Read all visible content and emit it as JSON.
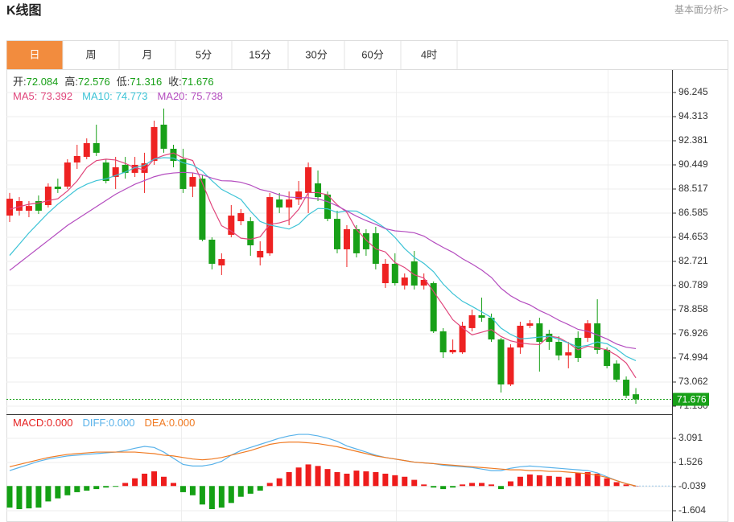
{
  "header": {
    "title": "K线图",
    "link": "基本面分析>"
  },
  "tabs": [
    "日",
    "周",
    "月",
    "5分",
    "15分",
    "30分",
    "60分",
    "4时"
  ],
  "active_tab": 0,
  "chart_data": [
    {
      "type": "candlestick",
      "ylim": [
        70.485,
        98.113
      ],
      "yticks": [
        96.245,
        94.313,
        92.381,
        90.449,
        88.517,
        86.585,
        84.653,
        82.721,
        80.789,
        78.858,
        76.926,
        74.994,
        73.062,
        {
          "value": 71.13,
          "label": "71.130"
        }
      ],
      "grid": true,
      "up_color": "#ee2222",
      "down_color": "#18a018",
      "readout_labels": {
        "open": "开:",
        "high": "高:",
        "low": "低:",
        "close": "收:"
      },
      "open": [
        86.39,
        86.78,
        86.78,
        87.55,
        87.23,
        88.71,
        88.71,
        90.64,
        91.09,
        92.19,
        90.64,
        89.48,
        90.45,
        89.81,
        89.81,
        90.77,
        93.67,
        91.74,
        90.9,
        88.71,
        89.35,
        84.46,
        82.4,
        84.85,
        85.94,
        85.94,
        83.04,
        83.37,
        87.68,
        87.04,
        87.68,
        88.2,
        88.97,
        88.07,
        86.13,
        83.69,
        85.3,
        84.98,
        84.98,
        80.98,
        82.53,
        80.79,
        82.72,
        80.79,
        80.98,
        77.12,
        75.44,
        75.44,
        77.38,
        78.41,
        78.21,
        76.47,
        72.87,
        75.83,
        77.57,
        77.76,
        76.93,
        76.28,
        75.19,
        76.6,
        76.6,
        77.76,
        75.64,
        74.54,
        73.25,
        72.084
      ],
      "high": [
        88.2,
        87.87,
        87.55,
        88.0,
        88.97,
        89.35,
        90.9,
        92.06,
        92.57,
        93.67,
        90.9,
        91.09,
        91.09,
        91.09,
        91.42,
        93.99,
        94.96,
        92.06,
        91.74,
        89.81,
        89.61,
        84.65,
        83.37,
        87.23,
        86.91,
        86.26,
        84.33,
        88.2,
        88.2,
        88.32,
        89.16,
        90.64,
        90.0,
        88.32,
        86.78,
        85.62,
        85.62,
        85.3,
        85.49,
        82.91,
        83.37,
        81.76,
        83.56,
        81.76,
        81.11,
        77.38,
        76.47,
        77.89,
        78.86,
        79.82,
        78.54,
        76.6,
        76.09,
        77.89,
        78.02,
        78.21,
        77.25,
        76.73,
        76.28,
        77.12,
        78.02,
        79.69,
        75.83,
        74.8,
        73.51,
        72.576
      ],
      "low": [
        85.88,
        86.39,
        86.26,
        86.52,
        87.04,
        88.2,
        88.52,
        90.13,
        90.9,
        91.16,
        88.97,
        88.52,
        89.35,
        89.48,
        88.2,
        90.45,
        91.42,
        90.26,
        88.2,
        87.87,
        84.33,
        82.08,
        81.63,
        84.65,
        85.62,
        83.17,
        82.4,
        83.17,
        86.59,
        85.62,
        87.23,
        86.59,
        87.55,
        85.94,
        83.37,
        82.27,
        83.04,
        83.17,
        82.08,
        80.6,
        80.79,
        80.47,
        80.47,
        80.47,
        76.99,
        74.99,
        75.32,
        75.32,
        77.12,
        77.89,
        76.28,
        72.22,
        72.74,
        75.32,
        77.38,
        73.9,
        75.64,
        74.8,
        74.16,
        74.67,
        76.28,
        75.32,
        74.16,
        73.06,
        71.77,
        71.316
      ],
      "close": [
        87.74,
        87.55,
        87.16,
        86.78,
        88.71,
        88.52,
        90.64,
        91.16,
        92.19,
        91.42,
        89.16,
        90.26,
        89.81,
        90.45,
        90.58,
        93.48,
        91.74,
        90.77,
        88.52,
        89.48,
        84.46,
        82.53,
        82.91,
        86.39,
        86.59,
        84.01,
        83.56,
        87.87,
        87.04,
        87.68,
        88.32,
        90.26,
        87.87,
        86.13,
        83.69,
        85.3,
        83.37,
        83.69,
        82.53,
        82.53,
        80.98,
        81.43,
        80.79,
        81.24,
        77.12,
        75.44,
        75.64,
        77.57,
        78.41,
        78.21,
        76.47,
        72.87,
        75.83,
        77.57,
        77.76,
        76.28,
        76.28,
        75.19,
        75.44,
        74.99,
        77.76,
        75.64,
        74.35,
        73.25,
        71.97,
        71.676
      ],
      "series": [
        {
          "name": "MA5:",
          "color": "#e0457b",
          "values": [
            86.9,
            87.1,
            87.3,
            87.4,
            87.59,
            87.74,
            88.36,
            89.16,
            90.24,
            90.79,
            90.91,
            90.84,
            90.57,
            90.22,
            90.05,
            90.92,
            91.21,
            91.4,
            91.02,
            90.8,
            88.99,
            87.15,
            85.58,
            85.15,
            84.58,
            84.49,
            84.69,
            85.68,
            85.81,
            86.03,
            86.89,
            88.23,
            88.23,
            88.05,
            87.25,
            86.65,
            85.27,
            84.44,
            83.72,
            83.48,
            82.62,
            82.23,
            81.65,
            81.39,
            80.31,
            79.2,
            78.05,
            77.4,
            76.84,
            77.05,
            77.26,
            76.71,
            76.36,
            76.19,
            76.1,
            76.06,
            76.74,
            76.62,
            76.19,
            75.64,
            75.93,
            75.8,
            75.64,
            75.2,
            74.59,
            73.392
          ]
        },
        {
          "name": "MA10:",
          "color": "#3cc3d6",
          "values": [
            83.2,
            84.1,
            85.0,
            85.8,
            86.6,
            87.3,
            87.9,
            88.5,
            88.9,
            89.19,
            89.33,
            89.6,
            89.87,
            90.23,
            90.42,
            90.92,
            91.03,
            90.99,
            90.62,
            90.43,
            89.96,
            89.18,
            88.49,
            88.09,
            87.69,
            86.74,
            85.92,
            85.63,
            85.48,
            85.31,
            85.69,
            86.46,
            86.96,
            86.93,
            86.64,
            86.77,
            86.75,
            86.34,
            85.89,
            85.37,
            84.64,
            83.75,
            83.05,
            82.56,
            81.9,
            80.91,
            80.14,
            79.53,
            79.12,
            78.68,
            78.23,
            77.38,
            76.88,
            76.52,
            76.58,
            76.66,
            76.73,
            76.49,
            76.19,
            75.87,
            76.0,
            76.27,
            76.13,
            75.7,
            75.12,
            74.773
          ]
        },
        {
          "name": "MA20:",
          "color": "#b44cbf",
          "values": [
            82.0,
            82.6,
            83.2,
            83.8,
            84.4,
            85.0,
            85.6,
            86.1,
            86.6,
            87.1,
            87.6,
            88.1,
            88.5,
            88.9,
            89.2,
            89.5,
            89.7,
            89.8,
            89.85,
            89.81,
            89.65,
            89.39,
            89.18,
            89.16,
            89.06,
            88.83,
            88.48,
            88.31,
            88.05,
            87.87,
            87.83,
            87.82,
            87.73,
            87.51,
            87.17,
            86.76,
            86.34,
            85.99,
            85.69,
            85.34,
            85.17,
            85.11,
            85.01,
            84.75,
            84.27,
            83.84,
            83.45,
            82.94,
            82.51,
            82.03,
            81.44,
            80.57,
            79.97,
            79.54,
            79.24,
            78.79,
            78.44,
            78.01,
            77.66,
            77.28,
            77.12,
            76.83,
            76.51,
            76.11,
            75.85,
            75.738
          ]
        }
      ]
    },
    {
      "type": "macd",
      "ylim": [
        -2.334,
        4.656
      ],
      "yticks": [
        3.091,
        1.526,
        -0.039,
        -1.604
      ],
      "grid": true,
      "bars": {
        "name": "MACD:",
        "color": "#e52222",
        "up_color": "#ee1c1c",
        "down_color": "#14a014",
        "last_label": "0.000",
        "values": [
          -1.4,
          -1.5,
          -1.45,
          -1.4,
          -1.0,
          -0.8,
          -0.6,
          -0.4,
          -0.3,
          -0.2,
          -0.1,
          -0.05,
          0.2,
          0.5,
          0.8,
          0.95,
          0.6,
          0.2,
          -0.4,
          -0.6,
          -1.2,
          -1.5,
          -1.4,
          -1.1,
          -0.7,
          -0.5,
          -0.3,
          0.2,
          0.5,
          0.9,
          1.2,
          1.4,
          1.3,
          1.1,
          0.9,
          0.8,
          1.0,
          0.95,
          0.9,
          0.8,
          0.7,
          0.6,
          0.4,
          0.1,
          -0.1,
          -0.2,
          -0.1,
          0.1,
          0.2,
          0.2,
          0.1,
          -0.2,
          0.3,
          0.6,
          0.75,
          0.7,
          0.65,
          0.6,
          0.55,
          0.85,
          0.9,
          0.8,
          0.5,
          0.25,
          0.1,
          0
        ]
      },
      "series": [
        {
          "name": "DIFF:",
          "color": "#58b2ea",
          "last_label": "0.000",
          "values": [
            1.0,
            1.2,
            1.4,
            1.6,
            1.75,
            1.85,
            1.95,
            2.0,
            2.05,
            2.1,
            2.15,
            2.2,
            2.3,
            2.45,
            2.57,
            2.5,
            2.2,
            1.8,
            1.4,
            1.3,
            1.3,
            1.4,
            1.6,
            2.0,
            2.3,
            2.5,
            2.7,
            2.9,
            3.1,
            3.25,
            3.35,
            3.35,
            3.25,
            3.1,
            2.9,
            2.6,
            2.4,
            2.2,
            2.0,
            1.85,
            1.75,
            1.65,
            1.55,
            1.5,
            1.45,
            1.35,
            1.3,
            1.25,
            1.2,
            1.1,
            1.0,
            1.0,
            1.15,
            1.25,
            1.3,
            1.25,
            1.2,
            1.15,
            1.1,
            1.05,
            1.0,
            0.85,
            0.6,
            0.35,
            0.15,
            0
          ]
        },
        {
          "name": "DEA:",
          "color": "#f07a22",
          "last_label": "0.000",
          "values": [
            1.25,
            1.4,
            1.55,
            1.7,
            1.85,
            1.95,
            2.05,
            2.1,
            2.15,
            2.2,
            2.2,
            2.2,
            2.2,
            2.2,
            2.15,
            2.1,
            2.0,
            1.95,
            1.85,
            1.75,
            1.7,
            1.75,
            1.85,
            2.0,
            2.15,
            2.3,
            2.5,
            2.7,
            2.8,
            2.85,
            2.85,
            2.8,
            2.75,
            2.65,
            2.55,
            2.4,
            2.25,
            2.1,
            1.95,
            1.85,
            1.75,
            1.65,
            1.55,
            1.5,
            1.45,
            1.4,
            1.35,
            1.3,
            1.25,
            1.2,
            1.15,
            1.1,
            1.05,
            1.05,
            1.0,
            1.0,
            0.95,
            0.95,
            0.9,
            0.85,
            0.8,
            0.7,
            0.55,
            0.35,
            0.15,
            0
          ]
        }
      ]
    }
  ]
}
